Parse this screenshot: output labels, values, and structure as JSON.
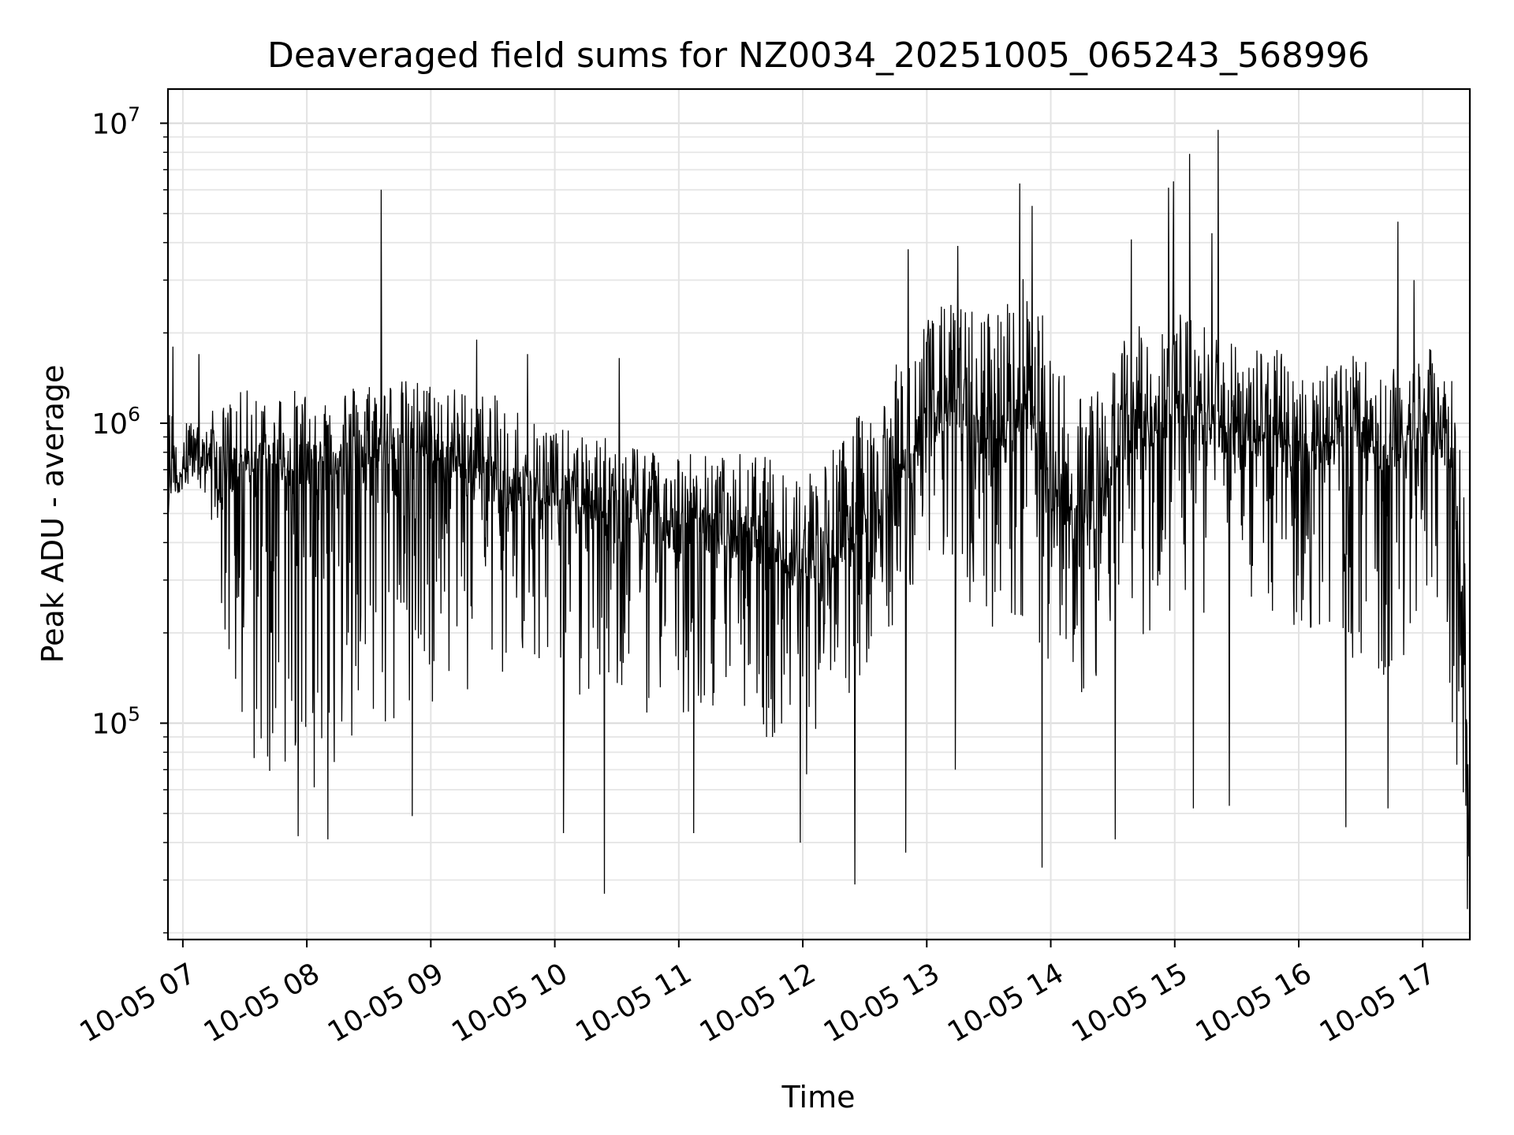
{
  "chart_data": {
    "type": "line",
    "title": "Deaveraged field sums for NZ0034_20251005_065243_568996",
    "xlabel": "Time",
    "ylabel": "Peak ADU - average",
    "yscale": "log",
    "ylim": [
      19000,
      13000000
    ],
    "xlim_hours": [
      6.88,
      17.38
    ],
    "x_ticks": [
      {
        "hour": 7,
        "label": "10-05 07"
      },
      {
        "hour": 8,
        "label": "10-05 08"
      },
      {
        "hour": 9,
        "label": "10-05 09"
      },
      {
        "hour": 10,
        "label": "10-05 10"
      },
      {
        "hour": 11,
        "label": "10-05 11"
      },
      {
        "hour": 12,
        "label": "10-05 12"
      },
      {
        "hour": 13,
        "label": "10-05 13"
      },
      {
        "hour": 14,
        "label": "10-05 14"
      },
      {
        "hour": 15,
        "label": "10-05 15"
      },
      {
        "hour": 16,
        "label": "10-05 16"
      },
      {
        "hour": 17,
        "label": "10-05 17"
      }
    ],
    "y_ticks": [
      {
        "value": 100000,
        "base": "10",
        "exp": "5"
      },
      {
        "value": 1000000,
        "base": "10",
        "exp": "6"
      },
      {
        "value": 10000000,
        "base": "10",
        "exp": "7"
      }
    ],
    "grid": true,
    "line_color": "#000000",
    "series": [
      {
        "name": "Peak ADU - average",
        "envelope": {
          "hour": [
            6.88,
            7.0,
            7.1,
            7.25,
            7.35,
            7.5,
            7.7,
            7.9,
            8.1,
            8.3,
            8.5,
            8.7,
            8.9,
            9.1,
            9.3,
            9.5,
            9.7,
            9.9,
            10.1,
            10.3,
            10.5,
            10.7,
            10.9,
            11.1,
            11.3,
            11.5,
            11.7,
            11.9,
            12.0,
            12.2,
            12.4,
            12.6,
            12.8,
            13.0,
            13.2,
            13.4,
            13.6,
            13.75,
            13.9,
            14.0,
            14.2,
            14.4,
            14.6,
            14.8,
            15.0,
            15.2,
            15.4,
            15.6,
            15.8,
            16.0,
            16.2,
            16.4,
            16.6,
            16.8,
            17.0,
            17.1,
            17.2,
            17.3,
            17.38
          ],
          "mid": [
            650000,
            700000,
            800000,
            750000,
            650000,
            700000,
            750000,
            700000,
            700000,
            750000,
            800000,
            800000,
            850000,
            750000,
            700000,
            650000,
            600000,
            580000,
            550000,
            520000,
            500000,
            480000,
            450000,
            440000,
            420000,
            430000,
            400000,
            360000,
            330000,
            380000,
            450000,
            550000,
            700000,
            1000000,
            1100000,
            900000,
            900000,
            1100000,
            900000,
            600000,
            500000,
            500000,
            900000,
            1000000,
            1100000,
            1000000,
            950000,
            900000,
            850000,
            800000,
            850000,
            900000,
            850000,
            800000,
            1100000,
            900000,
            900000,
            280000,
            80000
          ],
          "lo": [
            500000,
            600000,
            650000,
            450000,
            150000,
            80000,
            60000,
            55000,
            60000,
            70000,
            80000,
            75000,
            100000,
            110000,
            120000,
            140000,
            130000,
            140000,
            120000,
            110000,
            120000,
            110000,
            100000,
            110000,
            115000,
            110000,
            90000,
            70000,
            60000,
            90000,
            120000,
            180000,
            230000,
            350000,
            280000,
            220000,
            200000,
            220000,
            190000,
            140000,
            120000,
            130000,
            230000,
            180000,
            200000,
            230000,
            240000,
            240000,
            200000,
            190000,
            180000,
            170000,
            140000,
            120000,
            300000,
            260000,
            120000,
            60000,
            30000
          ],
          "hi": [
            1100000,
            1500000,
            900000,
            1000000,
            1200000,
            1300000,
            1300000,
            1300000,
            1300000,
            1350000,
            1400000,
            1400000,
            1400000,
            1350000,
            1300000,
            1250000,
            1150000,
            1050000,
            950000,
            900000,
            900000,
            880000,
            820000,
            820000,
            780000,
            800000,
            780000,
            720000,
            700000,
            800000,
            1000000,
            1350000,
            1650000,
            2300000,
            2600000,
            2400000,
            2500000,
            3200000,
            2700000,
            1700000,
            1400000,
            1300000,
            2000000,
            2200000,
            2400000,
            2200000,
            2000000,
            1900000,
            1800000,
            1600000,
            1700000,
            1700000,
            1600000,
            1500000,
            1900000,
            1700000,
            1700000,
            1000000,
            280000
          ]
        },
        "spikes": [
          {
            "hour": 6.92,
            "value": 1800000
          },
          {
            "hour": 7.13,
            "value": 1700000
          },
          {
            "hour": 8.6,
            "value": 6000000
          },
          {
            "hour": 9.37,
            "value": 1900000
          },
          {
            "hour": 9.78,
            "value": 1700000
          },
          {
            "hour": 10.52,
            "value": 1650000
          },
          {
            "hour": 12.85,
            "value": 3800000
          },
          {
            "hour": 13.25,
            "value": 3900000
          },
          {
            "hour": 13.75,
            "value": 6300000
          },
          {
            "hour": 13.85,
            "value": 5300000
          },
          {
            "hour": 14.65,
            "value": 4100000
          },
          {
            "hour": 14.95,
            "value": 6100000
          },
          {
            "hour": 14.99,
            "value": 6400000
          },
          {
            "hour": 15.12,
            "value": 7900000
          },
          {
            "hour": 15.3,
            "value": 4300000
          },
          {
            "hour": 15.35,
            "value": 9500000
          },
          {
            "hour": 16.8,
            "value": 4700000
          },
          {
            "hour": 16.93,
            "value": 3000000
          },
          {
            "hour": 7.24,
            "value": 1100000
          }
        ],
        "dips": [
          {
            "hour": 7.93,
            "value": 42000
          },
          {
            "hour": 8.17,
            "value": 41000
          },
          {
            "hour": 8.85,
            "value": 49000
          },
          {
            "hour": 10.07,
            "value": 43000
          },
          {
            "hour": 10.4,
            "value": 27000
          },
          {
            "hour": 11.12,
            "value": 43000
          },
          {
            "hour": 11.98,
            "value": 40000
          },
          {
            "hour": 12.42,
            "value": 29000
          },
          {
            "hour": 12.83,
            "value": 37000
          },
          {
            "hour": 13.23,
            "value": 70000
          },
          {
            "hour": 13.93,
            "value": 33000
          },
          {
            "hour": 14.52,
            "value": 41000
          },
          {
            "hour": 15.15,
            "value": 52000
          },
          {
            "hour": 15.44,
            "value": 53000
          },
          {
            "hour": 16.38,
            "value": 45000
          },
          {
            "hour": 16.72,
            "value": 52000
          },
          {
            "hour": 17.36,
            "value": 24000
          }
        ]
      }
    ]
  }
}
